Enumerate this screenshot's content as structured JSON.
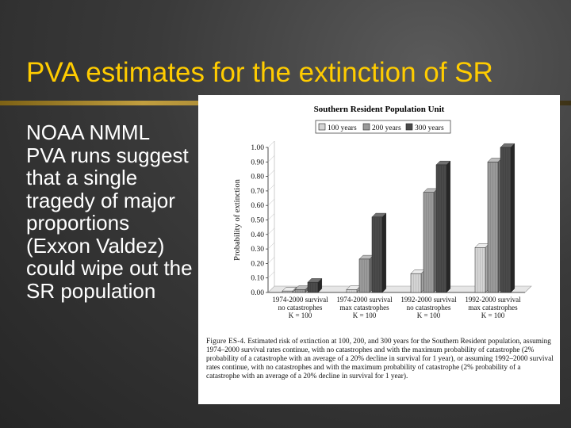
{
  "slide": {
    "title": "PVA estimates for the extinction of SR",
    "body": "NOAA NMML PVA runs suggest that a single tragedy of major proportions (Exxon Valdez) could wipe out the SR population"
  },
  "colors": {
    "title": "#ffcc00",
    "body_text": "#ffffff",
    "bar_100": "#d4d4d4",
    "bar_200": "#9a9a9a",
    "bar_300": "#4a4a4a"
  },
  "chart_data": {
    "type": "bar",
    "title": "Southern Resident Population Unit",
    "ylabel": "Probability of extinction",
    "xlabel": "",
    "ylim": [
      0,
      1.0
    ],
    "yticks": [
      "0.00",
      "0.10",
      "0.20",
      "0.30",
      "0.40",
      "0.50",
      "0.60",
      "0.70",
      "0.80",
      "0.90",
      "1.00"
    ],
    "categories": [
      [
        "1974-2000 survival",
        "no catastrophes",
        "K = 100"
      ],
      [
        "1974-2000 survival",
        "max catastrophes",
        "K = 100"
      ],
      [
        "1992-2000 survival",
        "no catastrophes",
        "K = 100"
      ],
      [
        "1992-2000 survival",
        "max catastrophes",
        "K = 100"
      ]
    ],
    "series": [
      {
        "name": "100 years",
        "values": [
          0.01,
          0.02,
          0.13,
          0.31
        ]
      },
      {
        "name": "200 years",
        "values": [
          0.02,
          0.23,
          0.69,
          0.9
        ]
      },
      {
        "name": "300 years",
        "values": [
          0.07,
          0.52,
          0.88,
          1.0
        ]
      }
    ],
    "legend_position": "top",
    "grid": false,
    "style": "3d-bar"
  },
  "figure": {
    "caption_label": "Figure ES-4.",
    "caption_text": "Estimated risk of extinction at 100, 200, and 300 years for the Southern Resident population, assuming 1974–2000 survival rates continue, with no catastrophes and with the maximum probability of catastrophe (2% probability of a catastrophe with an average of a 20% decline in survival for 1 year), or assuming 1992–2000 survival rates continue, with no catastrophes and with the maximum probability of catastrophe (2% probability of a catastrophe with an average of a 20% decline in survival for 1 year)."
  }
}
